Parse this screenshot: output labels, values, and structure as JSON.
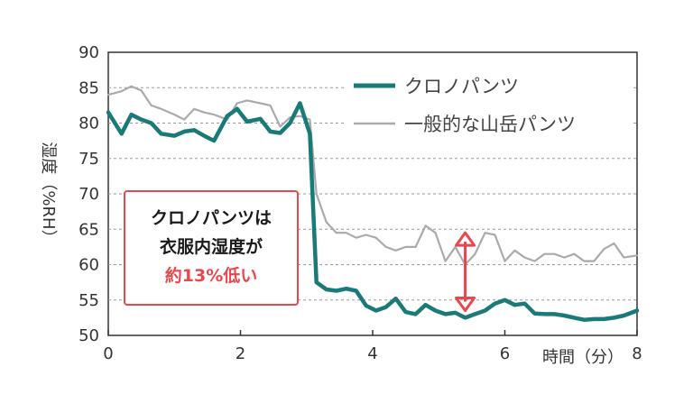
{
  "chart_data": {
    "type": "line",
    "xlabel": "時間（分）",
    "ylabel": "湿度（%RH）",
    "xlim": [
      0,
      8
    ],
    "ylim": [
      50,
      90
    ],
    "xticks": [
      "0",
      "2",
      "4",
      "6",
      "8"
    ],
    "yticks": [
      "50",
      "55",
      "60",
      "65",
      "70",
      "75",
      "80",
      "85",
      "90"
    ],
    "grid": "horizontal-dashed",
    "legend_position": "top-right",
    "series": [
      {
        "name": "クロノパンツ",
        "color": "#1a7a78",
        "x": [
          0,
          0.2,
          0.35,
          0.5,
          0.65,
          0.8,
          1.0,
          1.15,
          1.3,
          1.45,
          1.6,
          1.8,
          1.95,
          2.1,
          2.3,
          2.45,
          2.6,
          2.75,
          2.9,
          3.05,
          3.15,
          3.3,
          3.45,
          3.6,
          3.75,
          3.9,
          4.05,
          4.2,
          4.35,
          4.5,
          4.65,
          4.8,
          4.95,
          5.1,
          5.25,
          5.4,
          5.55,
          5.7,
          5.85,
          6.0,
          6.15,
          6.3,
          6.45,
          6.6,
          6.75,
          6.9,
          7.05,
          7.2,
          7.35,
          7.5,
          7.65,
          7.8,
          8.0
        ],
        "y": [
          81.5,
          78.5,
          81.2,
          80.5,
          80.0,
          78.5,
          78.2,
          78.8,
          79.0,
          78.2,
          77.5,
          81.0,
          82.0,
          80.2,
          80.6,
          78.8,
          78.6,
          80.0,
          82.8,
          78.5,
          57.5,
          56.5,
          56.3,
          56.6,
          56.3,
          54.2,
          53.5,
          54.0,
          55.2,
          53.3,
          53.0,
          54.3,
          53.5,
          53.0,
          53.2,
          52.5,
          53.0,
          53.5,
          54.5,
          55.0,
          54.3,
          54.5,
          53.1,
          53.0,
          53.0,
          52.8,
          52.5,
          52.2,
          52.3,
          52.3,
          52.5,
          52.8,
          53.5
        ]
      },
      {
        "name": "一般的な山岳パンツ",
        "color": "#aaaaaa",
        "x": [
          0,
          0.2,
          0.35,
          0.5,
          0.65,
          0.8,
          1.0,
          1.15,
          1.3,
          1.45,
          1.6,
          1.8,
          1.95,
          2.1,
          2.3,
          2.45,
          2.6,
          2.75,
          2.9,
          3.05,
          3.15,
          3.3,
          3.45,
          3.6,
          3.75,
          3.9,
          4.05,
          4.2,
          4.35,
          4.5,
          4.65,
          4.8,
          4.95,
          5.1,
          5.25,
          5.4,
          5.55,
          5.7,
          5.85,
          6.0,
          6.15,
          6.3,
          6.45,
          6.6,
          6.75,
          6.9,
          7.05,
          7.2,
          7.35,
          7.5,
          7.65,
          7.8,
          8.0
        ],
        "y": [
          84.0,
          84.5,
          85.2,
          84.6,
          82.5,
          82.0,
          81.2,
          80.5,
          82.0,
          81.5,
          81.2,
          80.5,
          82.8,
          83.2,
          82.8,
          82.5,
          79.5,
          80.8,
          81.0,
          80.5,
          70.0,
          66.0,
          64.5,
          64.5,
          63.8,
          64.2,
          63.8,
          62.5,
          62.0,
          62.5,
          62.5,
          65.5,
          64.5,
          60.5,
          62.5,
          60.0,
          61.5,
          64.5,
          64.2,
          60.5,
          62.0,
          61.0,
          60.5,
          61.5,
          61.5,
          61.0,
          61.5,
          60.5,
          60.5,
          62.2,
          63.0,
          61.0,
          61.3
        ]
      }
    ],
    "callout": {
      "line1": "クロノパンツは",
      "line2": "衣服内湿度が",
      "line3_accent": "約13%低い"
    },
    "arrow_color": "#e8474e",
    "arrow_x": 5.4,
    "arrow_y_range": [
      53.5,
      64.5
    ]
  }
}
